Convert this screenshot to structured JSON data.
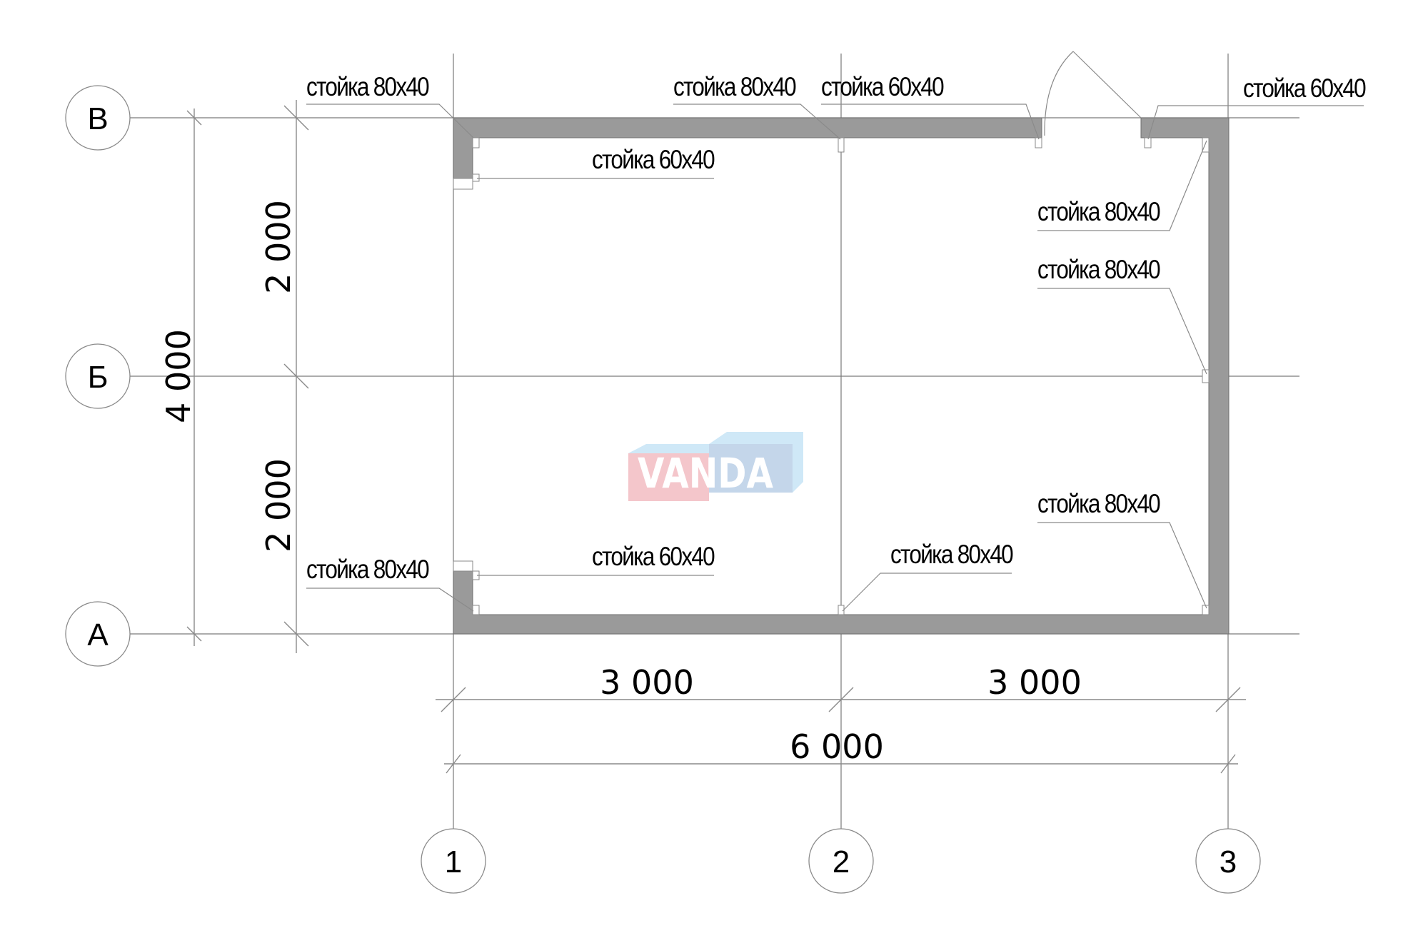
{
  "axes": {
    "rows": [
      "В",
      "Б",
      "А"
    ],
    "columns": [
      "1",
      "2",
      "3"
    ]
  },
  "dimensions": {
    "total_vertical": "4 000",
    "vertical_upper": "2 000",
    "vertical_lower": "2 000",
    "horizontal_left": "3 000",
    "horizontal_right": "3 000",
    "total_horizontal": "6 000"
  },
  "labels": [
    "стойка 80x40",
    "стойка 60x40",
    "стойка 80x40",
    "стойка 60x40",
    "стойка 60x40",
    "стойка 80x40",
    "стойка 80x40",
    "стойка 80x40",
    "стойка 80x40",
    "стойка 60x40",
    "стойка 80x40"
  ],
  "watermark": {
    "text": "VANDA",
    "colors": {
      "pink": "#f4c6cb",
      "blue": "#c4d6ea",
      "light_blue": "#cfe8f7"
    }
  },
  "colors": {
    "wall": "#9a9a9a",
    "lines": "#7a7a7a"
  }
}
